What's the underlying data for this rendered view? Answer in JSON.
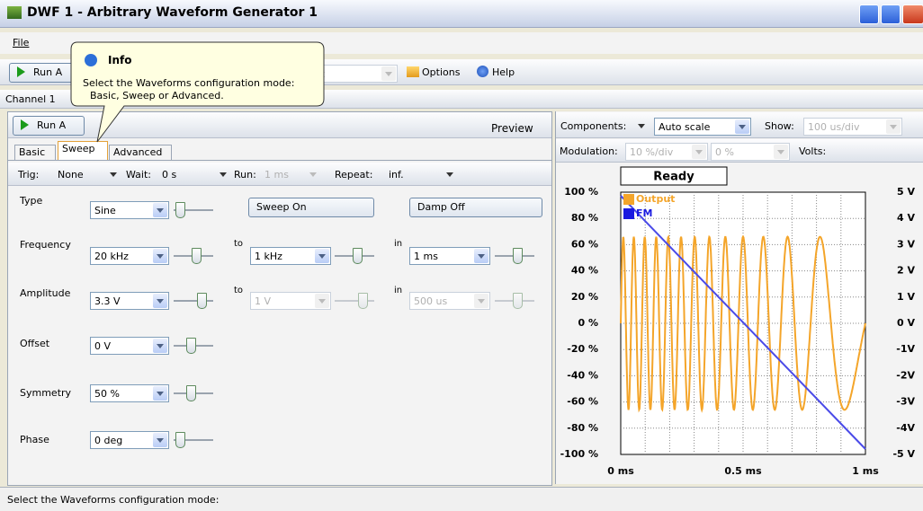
{
  "window": {
    "title": "DWF 1 - Arbitrary Waveform Generator 1"
  },
  "menu": [
    "File"
  ],
  "toolbar": {
    "run": "Run A",
    "mode": "ent",
    "options": "Options",
    "help": "Help"
  },
  "tooltip": {
    "title": "Info",
    "text": [
      "Select the Waveforms configuration mode:",
      "Basic, Sweep or Advanced."
    ]
  },
  "channel": "Channel 1",
  "left": {
    "run": "Run A",
    "preview": "Preview",
    "tabs": [
      "Basic",
      "Sweep",
      "Advanced"
    ],
    "trigger": {
      "trig_label": "Trig:",
      "trig": "None",
      "wait_label": "Wait:",
      "wait": "0 s",
      "run_label": "Run:",
      "run": "1 ms",
      "repeat_label": "Repeat:",
      "repeat": "inf."
    },
    "type": {
      "label": "Type",
      "value": "Sine",
      "sweep": "Sweep On",
      "damp": "Damp Off"
    },
    "frequency": {
      "label": "Frequency",
      "value": "20 kHz",
      "to_label": "to",
      "to": "1 kHz",
      "in_label": "in",
      "in": "1 ms"
    },
    "amplitude": {
      "label": "Amplitude",
      "value": "3.3 V",
      "to_label": "to",
      "to": "1 V",
      "in_label": "in",
      "in": "500 us"
    },
    "offset": {
      "label": "Offset",
      "value": "0 V"
    },
    "symmetry": {
      "label": "Symmetry",
      "value": "50 %"
    },
    "phase": {
      "label": "Phase",
      "value": "0 deg"
    }
  },
  "right": {
    "components": "Components:",
    "autoscale": "Auto scale",
    "show_label": "Show:",
    "show": "100 us/div",
    "modulation_label": "Modulation:",
    "mod_div": "10 %/div",
    "mod_offset": "0 %",
    "volts": "Volts:"
  },
  "plot": {
    "status": "Ready",
    "legend": [
      "Output",
      "FM"
    ],
    "left_ticks": [
      "100 %",
      "80 %",
      "60 %",
      "40 %",
      "20 %",
      "0 %",
      "-20 %",
      "-40 %",
      "-60 %",
      "-80 %",
      "-100 %"
    ],
    "right_ticks": [
      "5 V",
      "4 V",
      "3 V",
      "2 V",
      "1 V",
      "0 V",
      "-1V",
      "-2V",
      "-3V",
      "-4V",
      "-5 V"
    ],
    "x_ticks": [
      "0 ms",
      "0.5 ms",
      "1 ms"
    ]
  },
  "status_bar": "Select the Waveforms configuration mode:"
}
